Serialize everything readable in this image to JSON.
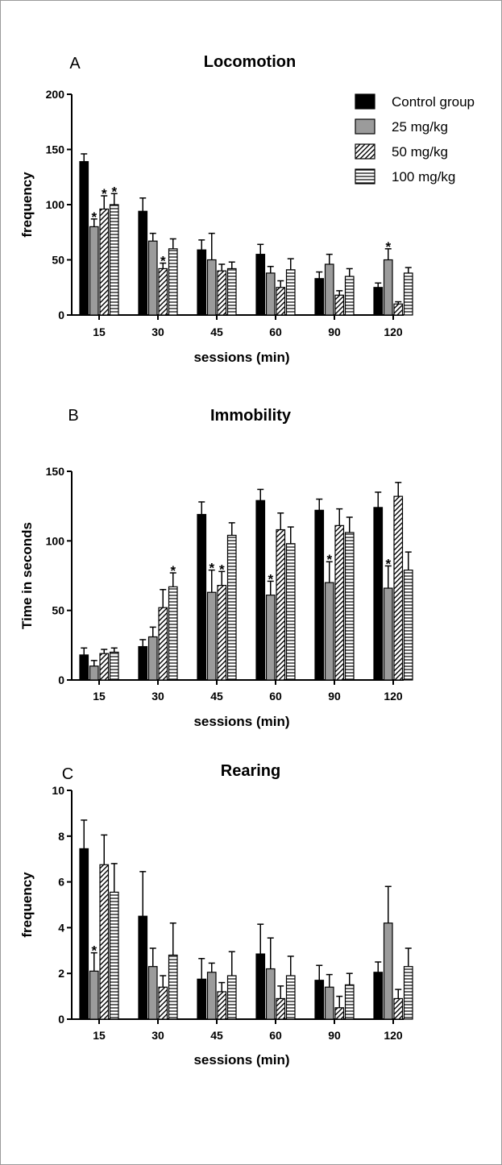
{
  "legend": {
    "entries": [
      {
        "name": "Control group",
        "style": "solid-black"
      },
      {
        "name": "25 mg/kg",
        "style": "solid-gray"
      },
      {
        "name": "50 mg/kg",
        "style": "diagonal-hatch"
      },
      {
        "name": "100 mg/kg",
        "style": "horizontal-hatch"
      }
    ],
    "placement": "top-right"
  },
  "colors": {
    "control": "#000000",
    "mg25": "#9b9b9b",
    "hatch_bg": "#ffffff",
    "stroke": "#000000"
  },
  "chart_data": [
    {
      "panel": "A",
      "type": "bar",
      "title": "Locomotion",
      "xlabel": "sessions (min)",
      "ylabel": "frequency",
      "categories": [
        "15",
        "30",
        "45",
        "60",
        "90",
        "120"
      ],
      "ylim": [
        0,
        200
      ],
      "yticks": [
        0,
        50,
        100,
        150,
        200
      ],
      "grid": false,
      "series": [
        {
          "name": "Control group",
          "values": [
            139,
            94,
            59,
            55,
            33,
            25
          ],
          "errors": [
            7,
            12,
            9,
            9,
            6,
            4
          ]
        },
        {
          "name": "25 mg/kg",
          "values": [
            80,
            67,
            50,
            38,
            46,
            50
          ],
          "errors": [
            7,
            7,
            24,
            6,
            9,
            10
          ]
        },
        {
          "name": "50 mg/kg",
          "values": [
            96,
            42,
            40,
            25,
            18,
            10
          ],
          "errors": [
            12,
            5,
            6,
            6,
            4,
            2
          ]
        },
        {
          "name": "100 mg/kg",
          "values": [
            100,
            60,
            42,
            41,
            35,
            38
          ],
          "errors": [
            10,
            9,
            6,
            10,
            7,
            5
          ]
        }
      ],
      "significance": [
        {
          "category": "15",
          "series": "25 mg/kg",
          "mark": "*"
        },
        {
          "category": "15",
          "series": "50 mg/kg",
          "mark": "*"
        },
        {
          "category": "15",
          "series": "100 mg/kg",
          "mark": "*"
        },
        {
          "category": "30",
          "series": "50 mg/kg",
          "mark": "*"
        },
        {
          "category": "120",
          "series": "25 mg/kg",
          "mark": "*"
        }
      ]
    },
    {
      "panel": "B",
      "type": "bar",
      "title": "Immobility",
      "xlabel": "sessions (min)",
      "ylabel": "Time in seconds",
      "categories": [
        "15",
        "30",
        "45",
        "60",
        "90",
        "120"
      ],
      "ylim": [
        0,
        150
      ],
      "yticks": [
        0,
        50,
        100,
        150
      ],
      "grid": false,
      "series": [
        {
          "name": "Control group",
          "values": [
            18,
            24,
            119,
            129,
            122,
            124
          ],
          "errors": [
            5,
            5,
            9,
            8,
            8,
            11
          ]
        },
        {
          "name": "25 mg/kg",
          "values": [
            10,
            31,
            63,
            61,
            70,
            66
          ],
          "errors": [
            4,
            7,
            16,
            10,
            15,
            16
          ]
        },
        {
          "name": "50 mg/kg",
          "values": [
            19,
            52,
            68,
            108,
            111,
            132
          ],
          "errors": [
            3,
            13,
            10,
            12,
            12,
            10
          ]
        },
        {
          "name": "100 mg/kg",
          "values": [
            20,
            67,
            104,
            98,
            106,
            79
          ],
          "errors": [
            3,
            10,
            9,
            12,
            11,
            13
          ]
        }
      ],
      "significance": [
        {
          "category": "30",
          "series": "100 mg/kg",
          "mark": "*"
        },
        {
          "category": "45",
          "series": "25 mg/kg",
          "mark": "*"
        },
        {
          "category": "45",
          "series": "50 mg/kg",
          "mark": "*"
        },
        {
          "category": "60",
          "series": "25 mg/kg",
          "mark": "*"
        },
        {
          "category": "90",
          "series": "25 mg/kg",
          "mark": "*"
        },
        {
          "category": "120",
          "series": "25 mg/kg",
          "mark": "*"
        }
      ]
    },
    {
      "panel": "C",
      "type": "bar",
      "title": "Rearing",
      "xlabel": "sessions (min)",
      "ylabel": "frequency",
      "categories": [
        "15",
        "30",
        "45",
        "60",
        "90",
        "120"
      ],
      "ylim": [
        0,
        10
      ],
      "yticks": [
        0,
        2,
        4,
        6,
        8,
        10
      ],
      "grid": false,
      "series": [
        {
          "name": "Control group",
          "values": [
            7.45,
            4.5,
            1.75,
            2.85,
            1.7,
            2.05
          ],
          "errors": [
            1.25,
            1.95,
            0.9,
            1.3,
            0.65,
            0.45
          ]
        },
        {
          "name": "25 mg/kg",
          "values": [
            2.1,
            2.3,
            2.05,
            2.2,
            1.4,
            4.2
          ],
          "errors": [
            0.8,
            0.8,
            0.4,
            1.35,
            0.55,
            1.6
          ]
        },
        {
          "name": "50 mg/kg",
          "values": [
            6.75,
            1.4,
            1.2,
            0.9,
            0.5,
            0.9
          ],
          "errors": [
            1.3,
            0.5,
            0.4,
            0.55,
            0.5,
            0.4
          ]
        },
        {
          "name": "100 mg/kg",
          "values": [
            5.55,
            2.8,
            1.9,
            1.9,
            1.5,
            2.3
          ],
          "errors": [
            1.25,
            1.4,
            1.05,
            0.85,
            0.5,
            0.8
          ]
        }
      ],
      "significance": [
        {
          "category": "15",
          "series": "25 mg/kg",
          "mark": "*"
        }
      ]
    }
  ]
}
